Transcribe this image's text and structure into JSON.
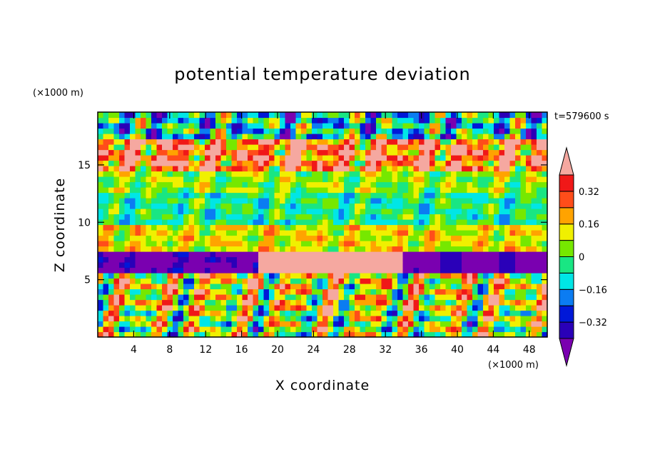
{
  "chart_data": {
    "type": "heatmap",
    "title": "potential temperature deviation",
    "xlabel": "X coordinate",
    "ylabel": "Z coordinate",
    "x_unit": "(×1000 m)",
    "y_unit": "(×1000 m)",
    "time_label": "t=579600 s",
    "xlim": [
      0,
      50
    ],
    "ylim": [
      0,
      19.6
    ],
    "x_ticks": [
      4,
      8,
      12,
      16,
      20,
      24,
      28,
      32,
      36,
      40,
      44,
      48
    ],
    "y_ticks": [
      5,
      10,
      15
    ],
    "colorbar": {
      "levels": [
        -0.4,
        -0.32,
        -0.24,
        -0.16,
        -0.08,
        0,
        0.08,
        0.16,
        0.24,
        0.32,
        0.4
      ],
      "tick_labels": [
        "0.32",
        "0.16",
        "0",
        "−0.16",
        "−0.32"
      ],
      "tick_values": [
        0.32,
        0.16,
        0,
        -0.16,
        -0.32
      ],
      "colors": [
        "#7a00b0",
        "#2a00b8",
        "#0018d8",
        "#0b7cf2",
        "#00e6e6",
        "#19e683",
        "#76e800",
        "#f0f000",
        "#ffa300",
        "#ff4d1a",
        "#f01818",
        "#f5a8a0"
      ],
      "extend": "both"
    },
    "bands": [
      {
        "z": [
          0,
          2.5
        ],
        "mean": 0.05
      },
      {
        "z": [
          2.5,
          5.5
        ],
        "mean": 0.12
      },
      {
        "z": [
          5.5,
          7.6
        ],
        "mean": -0.45
      },
      {
        "z": [
          7.6,
          10
        ],
        "mean": 0.12
      },
      {
        "z": [
          10,
          12.5
        ],
        "mean": -0.05
      },
      {
        "z": [
          12.5,
          14.6
        ],
        "mean": 0.05
      },
      {
        "z": [
          14.6,
          17.5
        ],
        "mean": 0.3
      },
      {
        "z": [
          17.5,
          19.6
        ],
        "mean": -0.1
      }
    ]
  }
}
